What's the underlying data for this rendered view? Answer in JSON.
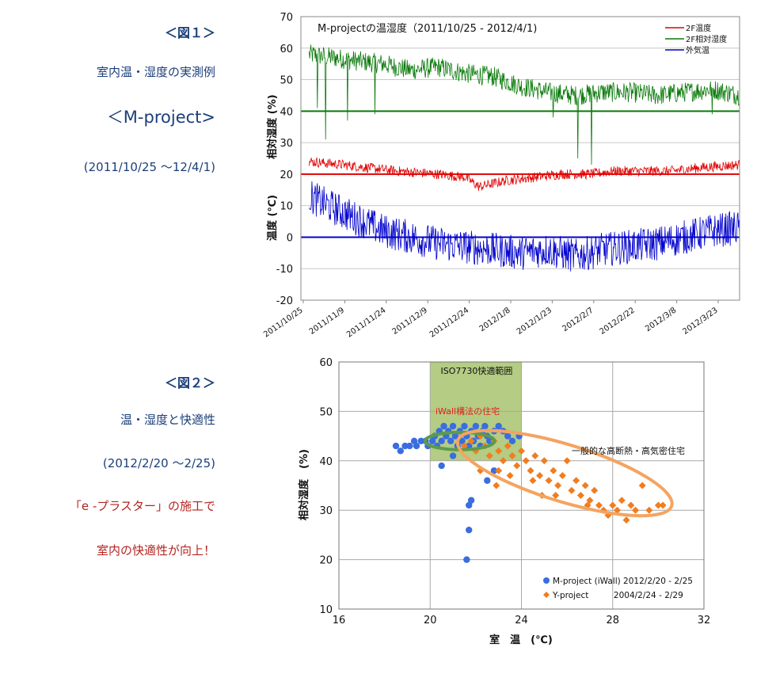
{
  "left_panel": {
    "fig1_title": "＜図１＞",
    "fig1_sub": "室内温・湿度の実測例",
    "fig1_project": "＜M-project>",
    "fig1_period": "(2011/10/25 〜12/4/1)",
    "fig2_title": "＜図２＞",
    "fig2_sub": "温・湿度と快適性",
    "fig2_period": "(2012/2/20 〜2/25)",
    "fig2_note1": "「e -プラスター」の施工で",
    "fig2_note2": "室内の快適性が向上！"
  },
  "chart_data": [
    {
      "type": "line",
      "title": "M-projectの温湿度（2011/10/25 - 2012/4/1)",
      "ylabel_top": "相対湿度 (%)",
      "ylabel_bottom": "温度 (℃)",
      "ylim": [
        -20,
        70
      ],
      "yticks": [
        -20,
        -10,
        0,
        10,
        20,
        30,
        40,
        50,
        60,
        70
      ],
      "x_tick_labels": [
        "2011/10/25",
        "2011/11/9",
        "2011/11/24",
        "2011/12/9",
        "2011/12/24",
        "2012/1/8",
        "2012/1/23",
        "2012/2/7",
        "2012/2/22",
        "2012/3/8",
        "2012/3/23"
      ],
      "x_range_days": [
        0,
        160
      ],
      "reference_lines": [
        40,
        20,
        0
      ],
      "legend": [
        "2F温度",
        "2F相対湿度",
        "外気温"
      ],
      "series": [
        {
          "name": "2F相対湿度",
          "color": "#0a7a0a",
          "anchors": [
            [
              3,
              58
            ],
            [
              12,
              57
            ],
            [
              20,
              56
            ],
            [
              30,
              55
            ],
            [
              40,
              53
            ],
            [
              50,
              54
            ],
            [
              60,
              52
            ],
            [
              70,
              51
            ],
            [
              80,
              48
            ],
            [
              90,
              46
            ],
            [
              100,
              45
            ],
            [
              110,
              46
            ],
            [
              120,
              46
            ],
            [
              130,
              45
            ],
            [
              140,
              46
            ],
            [
              150,
              47
            ],
            [
              160,
              45
            ]
          ],
          "dips": [
            [
              6,
              41
            ],
            [
              9,
              31
            ],
            [
              17,
              37
            ],
            [
              27,
              39
            ],
            [
              92,
              38
            ],
            [
              101,
              25
            ],
            [
              106,
              23
            ],
            [
              150,
              39
            ]
          ]
        },
        {
          "name": "2F温度",
          "color": "#e00000",
          "anchors": [
            [
              3,
              24
            ],
            [
              15,
              23
            ],
            [
              25,
              22
            ],
            [
              35,
              21
            ],
            [
              50,
              20
            ],
            [
              60,
              19
            ],
            [
              65,
              16
            ],
            [
              75,
              18
            ],
            [
              85,
              19
            ],
            [
              95,
              20
            ],
            [
              105,
              20
            ],
            [
              115,
              21
            ],
            [
              125,
              21
            ],
            [
              135,
              21
            ],
            [
              145,
              22
            ],
            [
              160,
              23
            ]
          ],
          "dips": []
        },
        {
          "name": "外気温",
          "color": "#0000cc",
          "anchors": [
            [
              3,
              13
            ],
            [
              10,
              10
            ],
            [
              20,
              6
            ],
            [
              30,
              2
            ],
            [
              40,
              0
            ],
            [
              50,
              -2
            ],
            [
              60,
              -3
            ],
            [
              70,
              -4
            ],
            [
              80,
              -5
            ],
            [
              90,
              -4
            ],
            [
              100,
              -6
            ],
            [
              110,
              -4
            ],
            [
              120,
              -3
            ],
            [
              130,
              -2
            ],
            [
              140,
              0
            ],
            [
              150,
              2
            ],
            [
              160,
              3
            ]
          ],
          "dips": []
        }
      ]
    },
    {
      "type": "scatter",
      "xlabel": "室　温　(℃)",
      "ylabel": "相対湿度　(%)",
      "xlim": [
        16,
        32
      ],
      "ylim": [
        10,
        60
      ],
      "xticks": [
        16,
        20,
        24,
        28,
        32
      ],
      "yticks": [
        10,
        20,
        30,
        40,
        50,
        60
      ],
      "comfort_zone": {
        "label": "ISO7730快適範囲",
        "x": [
          20,
          24
        ],
        "y": [
          40,
          60
        ],
        "color": "#9bbb59"
      },
      "iwall_ellipse": {
        "label": "iWall構法の住宅",
        "cx": 21.3,
        "cy": 44,
        "rx": 0.8,
        "ry": 3.2,
        "color": "#5b9b4c"
      },
      "general_ellipse": {
        "label": "一般的な高断熱・高気密住宅",
        "cx": 25.9,
        "cy": 37.5,
        "rx": 4.9,
        "ry": 8.5,
        "rotate": 17,
        "color": "#f4a460"
      },
      "series": [
        {
          "name": "M-project (iWall)",
          "legend": "M-project (iWall) 2012/2/20 - 2/25",
          "color": "#3a6de0",
          "marker": "circle",
          "points": [
            [
              18.5,
              43
            ],
            [
              18.7,
              42
            ],
            [
              18.9,
              43
            ],
            [
              19.1,
              43
            ],
            [
              19.3,
              44
            ],
            [
              19.4,
              43
            ],
            [
              19.6,
              44
            ],
            [
              19.8,
              44
            ],
            [
              19.9,
              43
            ],
            [
              20.1,
              44
            ],
            [
              20.2,
              45
            ],
            [
              20.3,
              43
            ],
            [
              20.4,
              46
            ],
            [
              20.5,
              44
            ],
            [
              20.6,
              47
            ],
            [
              20.7,
              45
            ],
            [
              20.8,
              46
            ],
            [
              20.9,
              44
            ],
            [
              21.0,
              47
            ],
            [
              21.1,
              45
            ],
            [
              21.2,
              43
            ],
            [
              21.3,
              46
            ],
            [
              21.4,
              44
            ],
            [
              21.5,
              47
            ],
            [
              21.6,
              45
            ],
            [
              21.7,
              43
            ],
            [
              21.8,
              46
            ],
            [
              21.9,
              44
            ],
            [
              22.0,
              47
            ],
            [
              22.1,
              45
            ],
            [
              22.2,
              43
            ],
            [
              22.3,
              46
            ],
            [
              22.4,
              47
            ],
            [
              22.5,
              45
            ],
            [
              22.6,
              44
            ],
            [
              22.8,
              46
            ],
            [
              23.0,
              47
            ],
            [
              23.2,
              46
            ],
            [
              23.4,
              45
            ],
            [
              23.6,
              44
            ],
            [
              23.9,
              45
            ],
            [
              20.5,
              39
            ],
            [
              21.0,
              41
            ],
            [
              22.5,
              36
            ],
            [
              22.8,
              38
            ],
            [
              21.7,
              31
            ],
            [
              21.8,
              32
            ],
            [
              21.7,
              26
            ],
            [
              21.6,
              20
            ]
          ]
        },
        {
          "name": "Y-project",
          "legend": "Y-project　　　2004/2/24 - 2/29",
          "color": "#f07d20",
          "marker": "diamond",
          "points": [
            [
              21.5,
              43
            ],
            [
              21.8,
              44
            ],
            [
              22.0,
              42
            ],
            [
              22.2,
              45
            ],
            [
              22.4,
              43
            ],
            [
              22.6,
              41
            ],
            [
              22.8,
              44
            ],
            [
              23.0,
              42
            ],
            [
              23.2,
              40
            ],
            [
              23.4,
              43
            ],
            [
              23.6,
              41
            ],
            [
              23.8,
              39
            ],
            [
              24.0,
              42
            ],
            [
              24.2,
              40
            ],
            [
              24.4,
              38
            ],
            [
              24.6,
              41
            ],
            [
              24.8,
              37
            ],
            [
              25.0,
              40
            ],
            [
              25.2,
              36
            ],
            [
              25.4,
              38
            ],
            [
              25.6,
              35
            ],
            [
              25.8,
              37
            ],
            [
              26.0,
              40
            ],
            [
              26.2,
              34
            ],
            [
              26.4,
              36
            ],
            [
              26.6,
              33
            ],
            [
              26.8,
              35
            ],
            [
              27.0,
              32
            ],
            [
              27.2,
              34
            ],
            [
              27.4,
              31
            ],
            [
              27.6,
              30
            ],
            [
              27.8,
              29
            ],
            [
              28.0,
              31
            ],
            [
              28.2,
              30
            ],
            [
              28.4,
              32
            ],
            [
              28.6,
              28
            ],
            [
              28.8,
              31
            ],
            [
              29.0,
              30
            ],
            [
              29.3,
              35
            ],
            [
              29.6,
              30
            ],
            [
              30.0,
              31
            ],
            [
              30.2,
              31
            ],
            [
              23.0,
              38
            ],
            [
              23.5,
              37
            ],
            [
              24.5,
              36
            ],
            [
              25.5,
              33
            ],
            [
              22.2,
              38
            ],
            [
              22.9,
              35
            ],
            [
              24.9,
              33
            ],
            [
              26.9,
              31
            ]
          ]
        }
      ]
    }
  ]
}
